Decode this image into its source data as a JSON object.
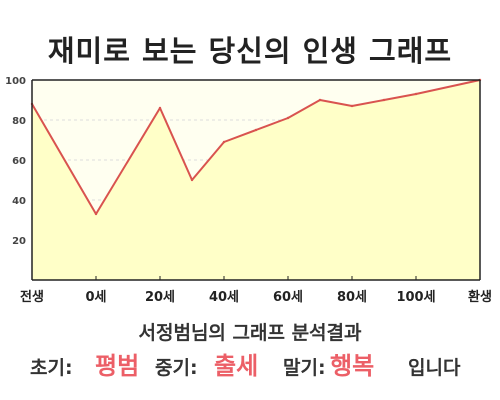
{
  "title": "재미로 보는 당신의 인생 그래프",
  "chart_data": {
    "type": "area",
    "title": "재미로 보는 당신의 인생 그래프",
    "x_ticks": [
      "전생",
      "0세",
      "20세",
      "40세",
      "60세",
      "80세",
      "100세",
      "환생"
    ],
    "y_ticks": [
      20,
      40,
      60,
      80,
      100
    ],
    "ylim": [
      0,
      100
    ],
    "x_range": [
      -20,
      120
    ],
    "grid": true,
    "x": [
      -20,
      0,
      20,
      30,
      40,
      50,
      60,
      70,
      80,
      90,
      100,
      120
    ],
    "y": [
      88,
      33,
      86,
      50,
      69,
      75,
      81,
      90,
      87,
      90,
      93,
      100
    ],
    "colors": {
      "plot_background": "#fffff0",
      "area_fill": "#ffffc8",
      "line": "#d9534f",
      "axis": "#222222",
      "grid": "#dddddd"
    }
  },
  "footer": {
    "analysis_title": "서정범님의 그래프 분석결과",
    "early_label": "초기:",
    "early_value": "평범",
    "middle_label": "중기:",
    "middle_value": "출세",
    "late_label": "말기:",
    "late_value": "행복",
    "ending": "입니다",
    "highlight_color": "#ec5f67"
  }
}
